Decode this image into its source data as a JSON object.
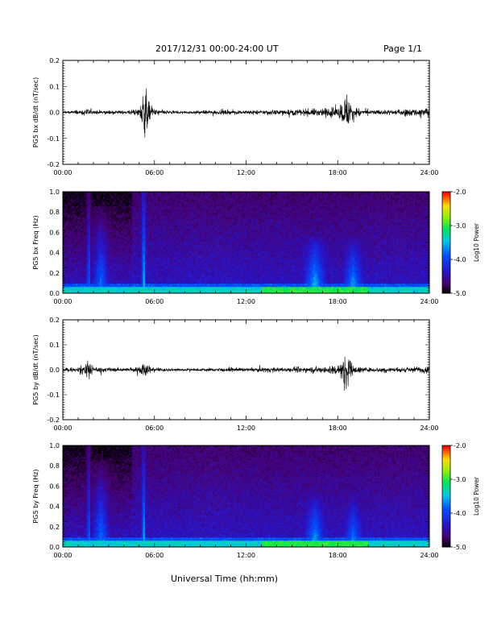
{
  "header": {
    "title": "2017/12/31  00:00-24:00 UT",
    "page": "Page 1/1"
  },
  "x_axis_title": "Universal Time (hh:mm)",
  "chart_data": [
    {
      "type": "line",
      "ylabel": "PG5 bx dB/dt (nT/sec)",
      "xlim": [
        0,
        24
      ],
      "ylim": [
        -0.2,
        0.2
      ],
      "x_ticks": [
        "00:00",
        "06:00",
        "12:00",
        "18:00",
        "24:00"
      ],
      "y_ticks": [
        "0.2",
        "0.1",
        "0.0",
        "-0.1",
        "-0.2"
      ],
      "y_tick_values": [
        0.2,
        0.1,
        0.0,
        -0.1,
        -0.2
      ],
      "series": [
        {
          "color": "#000000",
          "x": [
            0,
            1,
            1.5,
            2,
            3,
            4,
            5,
            5.2,
            5.4,
            5.6,
            6,
            7,
            8,
            9,
            10,
            11,
            12,
            13,
            14,
            15,
            16,
            17,
            18,
            18.3,
            18.6,
            19,
            20,
            21,
            22,
            23,
            24
          ],
          "envelope": [
            0.008,
            0.012,
            0.02,
            0.012,
            0.01,
            0.01,
            0.02,
            0.1,
            0.14,
            0.06,
            0.02,
            0.008,
            0.008,
            0.01,
            0.012,
            0.012,
            0.01,
            0.012,
            0.014,
            0.016,
            0.018,
            0.022,
            0.03,
            0.06,
            0.11,
            0.03,
            0.012,
            0.014,
            0.016,
            0.02,
            0.03
          ]
        }
      ]
    },
    {
      "type": "heatmap",
      "ylabel": "PG5 bx Freq (Hz)",
      "xlim": [
        0,
        24
      ],
      "ylim": [
        0,
        1.0
      ],
      "x_ticks": [
        "00:00",
        "06:00",
        "12:00",
        "18:00",
        "24:00"
      ],
      "y_ticks": [
        "1.0",
        "0.8",
        "0.6",
        "0.4",
        "0.2",
        "0.0"
      ],
      "y_tick_values": [
        1.0,
        0.8,
        0.6,
        0.4,
        0.2,
        0.0
      ],
      "colorbar": {
        "label": "Log10 Power",
        "ticks": [
          "-2.0",
          "-3.0",
          "-4.0",
          "-5.0"
        ],
        "range": [
          -5.0,
          -2.0
        ]
      },
      "features": [
        {
          "t": 1.7,
          "f_max": 1.0,
          "level": -3.5
        },
        {
          "t": 2.5,
          "f_max": 0.85,
          "level": -3.6
        },
        {
          "t": 5.3,
          "f_max": 1.0,
          "level": -3.2
        },
        {
          "t": 16.5,
          "f_max": 0.55,
          "level": -3.3
        },
        {
          "t": 19.0,
          "f_max": 0.55,
          "level": -3.4
        }
      ]
    },
    {
      "type": "line",
      "ylabel": "PG5 by dB/dt (nT/sec)",
      "xlim": [
        0,
        24
      ],
      "ylim": [
        -0.2,
        0.2
      ],
      "x_ticks": [
        "00:00",
        "06:00",
        "12:00",
        "18:00",
        "24:00"
      ],
      "y_ticks": [
        "0.2",
        "0.1",
        "0.0",
        "-0.1",
        "-0.2"
      ],
      "y_tick_values": [
        0.2,
        0.1,
        0.0,
        -0.1,
        -0.2
      ],
      "series": [
        {
          "color": "#000000",
          "x": [
            0,
            1,
            1.7,
            2,
            3,
            4,
            5,
            5.3,
            5.6,
            6,
            7,
            8,
            9,
            10,
            11,
            12,
            13,
            14,
            15,
            16,
            17,
            18,
            18.3,
            18.6,
            19,
            20,
            21,
            22,
            23,
            24
          ],
          "envelope": [
            0.01,
            0.014,
            0.05,
            0.015,
            0.012,
            0.01,
            0.02,
            0.05,
            0.025,
            0.012,
            0.008,
            0.008,
            0.008,
            0.01,
            0.01,
            0.01,
            0.012,
            0.014,
            0.014,
            0.014,
            0.018,
            0.03,
            0.06,
            0.1,
            0.025,
            0.012,
            0.014,
            0.014,
            0.018,
            0.02
          ]
        }
      ]
    },
    {
      "type": "heatmap",
      "ylabel": "PG5 by Freq (Hz)",
      "xlim": [
        0,
        24
      ],
      "ylim": [
        0,
        1.0
      ],
      "x_ticks": [
        "00:00",
        "06:00",
        "12:00",
        "18:00",
        "24:00"
      ],
      "y_ticks": [
        "1.0",
        "0.8",
        "0.6",
        "0.4",
        "0.2",
        "0.0"
      ],
      "y_tick_values": [
        1.0,
        0.8,
        0.6,
        0.4,
        0.2,
        0.0
      ],
      "colorbar": {
        "label": "Log10 Power",
        "ticks": [
          "-2.0",
          "-3.0",
          "-4.0",
          "-5.0"
        ],
        "range": [
          -5.0,
          -2.0
        ]
      },
      "features": [
        {
          "t": 1.7,
          "f_max": 1.0,
          "level": -3.5
        },
        {
          "t": 2.5,
          "f_max": 0.85,
          "level": -3.6
        },
        {
          "t": 5.3,
          "f_max": 1.0,
          "level": -3.3
        },
        {
          "t": 16.5,
          "f_max": 0.55,
          "level": -3.4
        },
        {
          "t": 19.0,
          "f_max": 0.55,
          "level": -3.5
        }
      ]
    }
  ]
}
